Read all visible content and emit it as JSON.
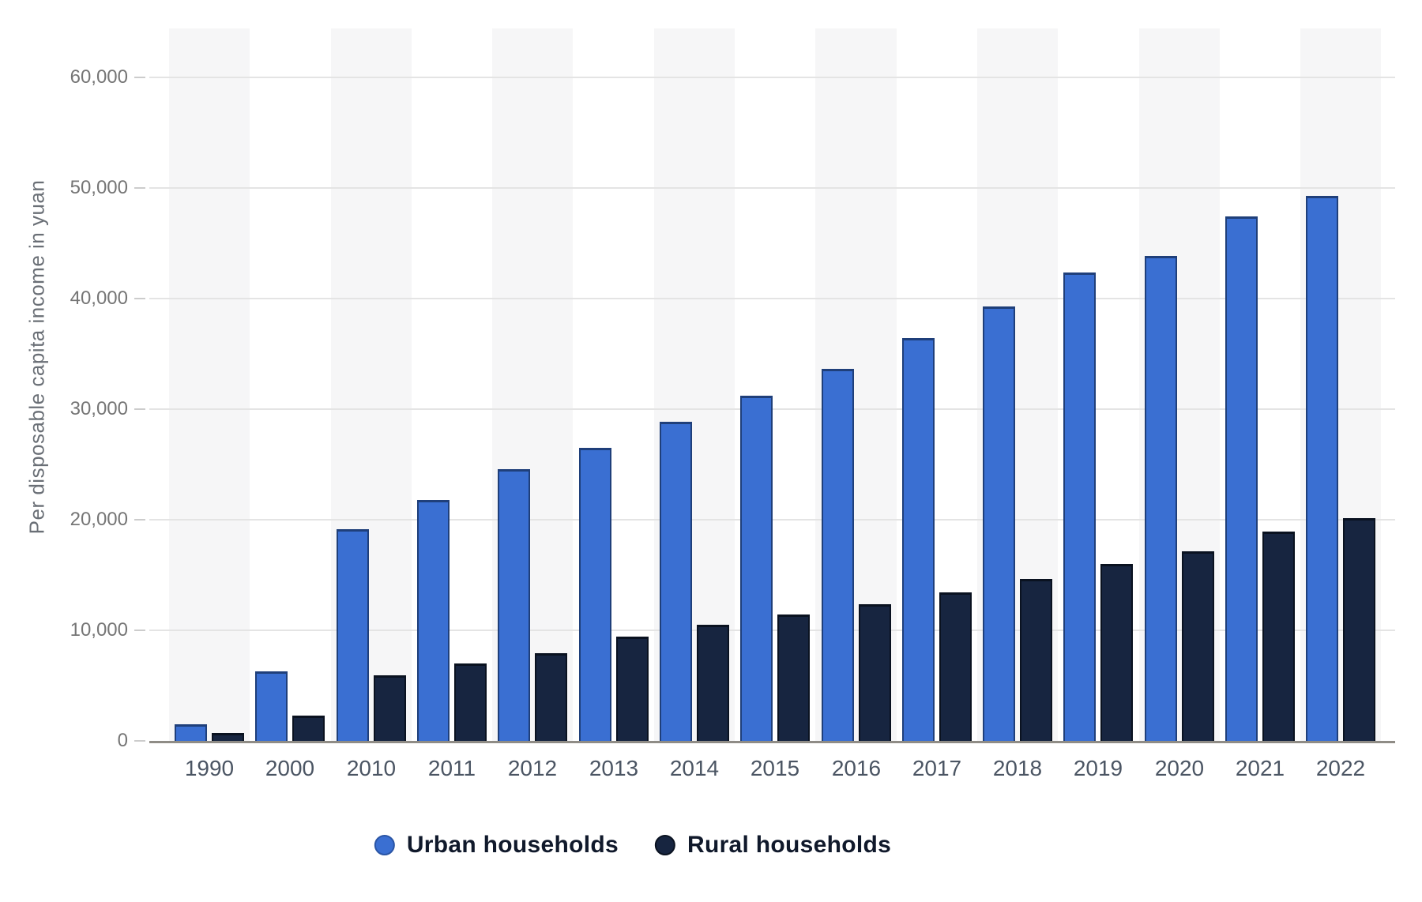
{
  "chart_data": {
    "type": "bar",
    "title": "",
    "xlabel": "",
    "ylabel": "Per disposable capita income in yuan",
    "categories": [
      "1990",
      "2000",
      "2010",
      "2011",
      "2012",
      "2013",
      "2014",
      "2015",
      "2016",
      "2017",
      "2018",
      "2019",
      "2020",
      "2021",
      "2022"
    ],
    "series": [
      {
        "name": "Urban households",
        "color": "#3a6fd2",
        "values": [
          1510,
          6280,
          19109,
          21810,
          24565,
          26467,
          28844,
          31195,
          33616,
          36396,
          39251,
          42359,
          43834,
          47412,
          49283
        ]
      },
      {
        "name": "Rural households",
        "color": "#172540",
        "values": [
          686,
          2253,
          5919,
          6977,
          7917,
          9430,
          10489,
          11422,
          12363,
          13432,
          14617,
          16021,
          17132,
          18931,
          20133
        ]
      }
    ],
    "ylim": [
      0,
      60000
    ],
    "ytick_step": 10000,
    "ytick_labels": [
      "0",
      "10,000",
      "20,000",
      "30,000",
      "40,000",
      "50,000",
      "60,000"
    ],
    "grid": true,
    "plot_bands": "alternating vertical stripes per category",
    "legend_position": "bottom-center"
  }
}
